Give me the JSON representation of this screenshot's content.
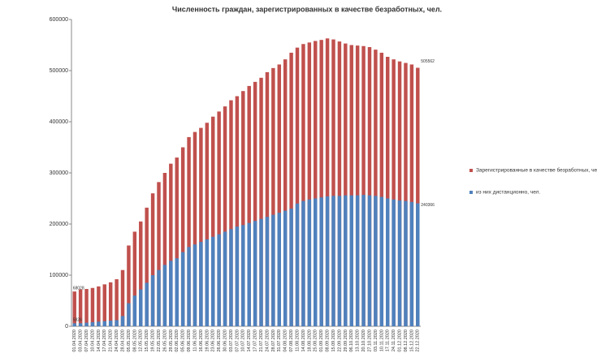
{
  "chart_data": {
    "type": "bar",
    "title": "Численность граждан, зарегистрированных в качестве безработных, чел.",
    "categories": [
      "01.04.2020",
      "03.04.2020",
      "07.04.2020",
      "10.04.2020",
      "14.04.2020",
      "17.04.2020",
      "21.04.2020",
      "24.04.2020",
      "28.04.2020",
      "05.05.2020",
      "08.05.2020",
      "12.05.2020",
      "15.05.2020",
      "19.05.2020",
      "22.05.2020",
      "26.05.2020",
      "29.05.2020",
      "02.06.2020",
      "05.06.2020",
      "09.06.2020",
      "11.06.2020",
      "16.06.2020",
      "19.06.2020",
      "23.06.2020",
      "26.06.2020",
      "30.06.2020",
      "03.07.2020",
      "07.07.2020",
      "10.07.2020",
      "14.07.2020",
      "17.07.2020",
      "21.07.2020",
      "24.07.2020",
      "28.07.2020",
      "31.07.2020",
      "04.08.2020",
      "07.08.2020",
      "11.08.2020",
      "14.08.2020",
      "18.08.2020",
      "25.08.2020",
      "01.09.2020",
      "08.09.2020",
      "15.09.2020",
      "22.09.2020",
      "29.09.2020",
      "06.10.2020",
      "13.10.2020",
      "20.10.2020",
      "27.10.2020",
      "03.11.2020",
      "10.11.2020",
      "17.11.2020",
      "24.11.2020",
      "01.12.2020",
      "08.12.2020",
      "15.12.2020",
      "22.12.2020"
    ],
    "series": [
      {
        "name": "Зарегистрированные  в качестве безработных, чел.",
        "color": "#c0504d",
        "values": [
          68028,
          72000,
          73000,
          75000,
          78000,
          82000,
          86000,
          92000,
          110000,
          158000,
          185000,
          205000,
          232000,
          260000,
          282000,
          300000,
          318000,
          330000,
          350000,
          370000,
          380000,
          388000,
          398000,
          410000,
          420000,
          430000,
          442000,
          450000,
          460000,
          470000,
          478000,
          486000,
          497000,
          505000,
          512000,
          522000,
          535000,
          545000,
          552000,
          555000,
          558000,
          560000,
          563000,
          561000,
          557000,
          553000,
          550000,
          549000,
          548000,
          546000,
          541000,
          535000,
          527000,
          522000,
          518000,
          515000,
          512000,
          505562
        ],
        "value_labels": [
          "68028",
          null,
          null,
          null,
          null,
          null,
          null,
          null,
          null,
          null,
          null,
          null,
          null,
          null,
          null,
          null,
          null,
          null,
          null,
          null,
          null,
          null,
          null,
          null,
          null,
          null,
          null,
          null,
          null,
          null,
          null,
          null,
          null,
          null,
          null,
          null,
          null,
          null,
          null,
          null,
          null,
          null,
          null,
          null,
          null,
          null,
          null,
          null,
          null,
          null,
          null,
          null,
          null,
          null,
          null,
          null,
          null,
          "505562"
        ]
      },
      {
        "name": "из них дистанционно,  чел.",
        "color": "#4f81bd",
        "values": [
          5826,
          6000,
          7000,
          8000,
          9000,
          10000,
          11000,
          12000,
          20000,
          45000,
          60000,
          72000,
          85000,
          100000,
          110000,
          120000,
          128000,
          133000,
          145000,
          155000,
          160000,
          165000,
          170000,
          175000,
          180000,
          185000,
          190000,
          195000,
          198000,
          202000,
          206000,
          210000,
          214000,
          218000,
          222000,
          226000,
          230000,
          240000,
          245000,
          248000,
          250000,
          252000,
          254000,
          255000,
          255000,
          256000,
          256000,
          256000,
          257000,
          256000,
          255000,
          253000,
          250000,
          248000,
          246000,
          245000,
          243000,
          240366
        ],
        "value_labels": [
          "5826",
          null,
          null,
          null,
          null,
          null,
          null,
          null,
          null,
          null,
          null,
          null,
          null,
          null,
          null,
          null,
          null,
          null,
          null,
          null,
          null,
          null,
          null,
          null,
          null,
          null,
          null,
          null,
          null,
          null,
          null,
          null,
          null,
          null,
          null,
          null,
          null,
          null,
          null,
          null,
          null,
          null,
          null,
          null,
          null,
          null,
          null,
          null,
          null,
          null,
          null,
          null,
          null,
          null,
          null,
          null,
          null,
          "240366"
        ]
      }
    ],
    "ylim": [
      0,
      600000
    ],
    "yticks": [
      0,
      100000,
      200000,
      300000,
      400000,
      500000,
      600000
    ],
    "grid": false,
    "legend": "right",
    "overlap": true
  }
}
